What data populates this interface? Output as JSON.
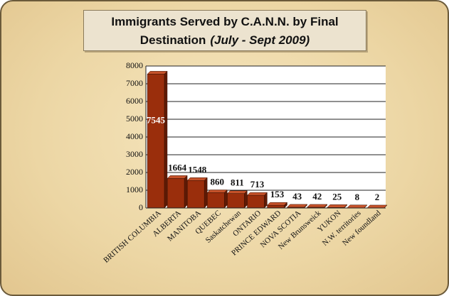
{
  "chart_data": {
    "type": "bar",
    "title": "Immigrants Served by C.A.N.N. by Final",
    "subtitle_lead": "Destination",
    "subtitle": "(July - Sept 2009)",
    "categories": [
      "BRITISH COLUMBIA",
      "ALBERTA",
      "MANITOBA",
      "QUEBEC",
      "Saskatchewan",
      "ONTARIO",
      "PRINCE EDWARD",
      "NOVA SCOTIA",
      "New Brunsweick",
      "YUKON",
      "N.W. territories",
      "New foundland"
    ],
    "values": [
      7545,
      1664,
      1548,
      860,
      811,
      713,
      153,
      43,
      42,
      25,
      8,
      2
    ],
    "color": "#9a2e0c",
    "ylim": [
      0,
      8000
    ],
    "yticks": [
      0,
      1000,
      2000,
      3000,
      4000,
      5000,
      6000,
      7000,
      8000
    ],
    "grid": true
  }
}
